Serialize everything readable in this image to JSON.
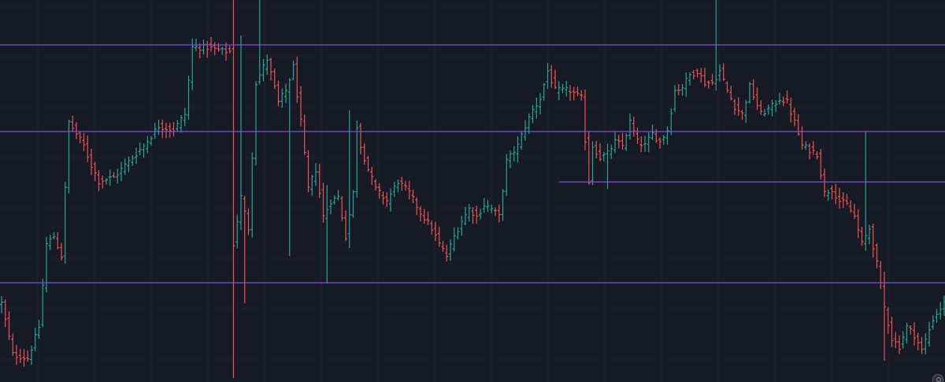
{
  "chart_data": {
    "type": "ohlc",
    "grid": true,
    "colors": {
      "background": "#161a25",
      "grid": "#1f2330",
      "up": "#26a69a",
      "down": "#ef5350",
      "level_line": "#7b4fd6"
    },
    "y_range": [
      0,
      485
    ],
    "horizontal_levels": [
      {
        "price": 428,
        "from_bar": 0,
        "to_bar": 252
      },
      {
        "price": 318,
        "from_bar": 0,
        "to_bar": 252
      },
      {
        "price": 254,
        "from_bar": 149,
        "to_bar": 252
      },
      {
        "price": 126,
        "from_bar": 0,
        "to_bar": 252
      }
    ],
    "anchors": [
      [
        0,
        100
      ],
      [
        3,
        35
      ],
      [
        7,
        30
      ],
      [
        10,
        70
      ],
      [
        12,
        175
      ],
      [
        14,
        185
      ],
      [
        16,
        160
      ],
      [
        18,
        330
      ],
      [
        20,
        315
      ],
      [
        22,
        300
      ],
      [
        24,
        275
      ],
      [
        26,
        255
      ],
      [
        30,
        260
      ],
      [
        34,
        280
      ],
      [
        38,
        300
      ],
      [
        42,
        325
      ],
      [
        46,
        320
      ],
      [
        49,
        340
      ],
      [
        51,
        425
      ],
      [
        55,
        425
      ],
      [
        59,
        420
      ],
      [
        61,
        420
      ],
      [
        62,
        175
      ],
      [
        64,
        235
      ],
      [
        66,
        195
      ],
      [
        68,
        380
      ],
      [
        71,
        410
      ],
      [
        74,
        355
      ],
      [
        76,
        370
      ],
      [
        78,
        400
      ],
      [
        80,
        330
      ],
      [
        82,
        245
      ],
      [
        84,
        270
      ],
      [
        86,
        210
      ],
      [
        88,
        230
      ],
      [
        90,
        235
      ],
      [
        92,
        185
      ],
      [
        94,
        240
      ],
      [
        95,
        325
      ],
      [
        96,
        300
      ],
      [
        98,
        270
      ],
      [
        100,
        245
      ],
      [
        103,
        230
      ],
      [
        106,
        255
      ],
      [
        109,
        240
      ],
      [
        112,
        215
      ],
      [
        115,
        195
      ],
      [
        117,
        175
      ],
      [
        119,
        160
      ],
      [
        121,
        185
      ],
      [
        123,
        205
      ],
      [
        125,
        220
      ],
      [
        127,
        210
      ],
      [
        129,
        225
      ],
      [
        131,
        220
      ],
      [
        133,
        210
      ],
      [
        135,
        280
      ],
      [
        138,
        300
      ],
      [
        140,
        325
      ],
      [
        142,
        345
      ],
      [
        144,
        360
      ],
      [
        146,
        395
      ],
      [
        148,
        370
      ],
      [
        152,
        370
      ],
      [
        155,
        360
      ],
      [
        157,
        255
      ],
      [
        158,
        300
      ],
      [
        160,
        285
      ],
      [
        162,
        290
      ],
      [
        164,
        305
      ],
      [
        166,
        300
      ],
      [
        168,
        330
      ],
      [
        170,
        305
      ],
      [
        172,
        300
      ],
      [
        174,
        315
      ],
      [
        176,
        305
      ],
      [
        178,
        320
      ],
      [
        180,
        370
      ],
      [
        182,
        375
      ],
      [
        184,
        390
      ],
      [
        186,
        395
      ],
      [
        188,
        380
      ],
      [
        190,
        380
      ],
      [
        192,
        395
      ],
      [
        194,
        370
      ],
      [
        196,
        350
      ],
      [
        198,
        340
      ],
      [
        200,
        375
      ],
      [
        203,
        340
      ],
      [
        206,
        350
      ],
      [
        208,
        360
      ],
      [
        210,
        355
      ],
      [
        212,
        330
      ],
      [
        214,
        300
      ],
      [
        216,
        295
      ],
      [
        218,
        290
      ],
      [
        220,
        240
      ],
      [
        222,
        245
      ],
      [
        224,
        230
      ],
      [
        226,
        225
      ],
      [
        228,
        210
      ],
      [
        230,
        175
      ],
      [
        232,
        195
      ],
      [
        234,
        150
      ],
      [
        236,
        95
      ],
      [
        238,
        55
      ],
      [
        240,
        45
      ],
      [
        242,
        70
      ],
      [
        244,
        60
      ],
      [
        246,
        40
      ],
      [
        249,
        80
      ],
      [
        252,
        100
      ]
    ],
    "spikes": [
      {
        "bar": 62,
        "high": 485,
        "low": 5
      },
      {
        "bar": 64,
        "high": 440,
        "low": 210
      },
      {
        "bar": 65,
        "high": 220,
        "low": 100
      },
      {
        "bar": 69,
        "high": 485,
        "low": 390
      },
      {
        "bar": 77,
        "high": 300,
        "low": 160
      },
      {
        "bar": 87,
        "high": 250,
        "low": 125
      },
      {
        "bar": 93,
        "high": 345,
        "low": 170
      },
      {
        "bar": 162,
        "high": 280,
        "low": 245
      },
      {
        "bar": 191,
        "high": 485,
        "low": 370
      },
      {
        "bar": 231,
        "high": 318,
        "low": 170
      },
      {
        "bar": 236,
        "high": 140,
        "low": 27
      }
    ]
  }
}
